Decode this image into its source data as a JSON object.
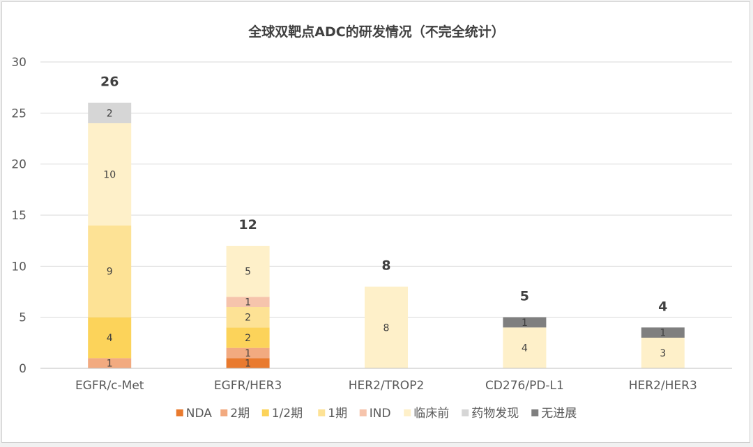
{
  "chart_data": {
    "type": "bar",
    "stacked": true,
    "title": "全球双靶点ADC的研发情况（不完全统计）",
    "categories": [
      "EGFR/c-Met",
      "EGFR/HER3",
      "HER2/TROP2",
      "CD276/PD-L1",
      "HER2/HER3"
    ],
    "series": [
      {
        "name": "NDA",
        "color": "#E97A2E",
        "values": [
          0,
          1,
          0,
          0,
          0
        ]
      },
      {
        "name": "2期",
        "color": "#F2AA80",
        "values": [
          1,
          1,
          0,
          0,
          0
        ]
      },
      {
        "name": "1/2期",
        "color": "#FCD35A",
        "values": [
          4,
          2,
          0,
          0,
          0
        ]
      },
      {
        "name": "1期",
        "color": "#FDE295",
        "values": [
          9,
          2,
          0,
          0,
          0
        ]
      },
      {
        "name": "IND",
        "color": "#F6C4AC",
        "values": [
          0,
          1,
          0,
          0,
          0
        ]
      },
      {
        "name": "临床前",
        "color": "#FEF0C9",
        "values": [
          10,
          5,
          8,
          4,
          3
        ]
      },
      {
        "name": "药物发现",
        "color": "#D6D6D6",
        "values": [
          2,
          0,
          0,
          0,
          0
        ]
      },
      {
        "name": "无进展",
        "color": "#7F7F7F",
        "values": [
          0,
          0,
          0,
          1,
          1
        ]
      }
    ],
    "totals": [
      26,
      12,
      8,
      5,
      4
    ],
    "ylim": [
      0,
      30
    ],
    "yticks": [
      0,
      5,
      10,
      15,
      20,
      25,
      30
    ],
    "grid": true,
    "legend": "bottom",
    "xlabel": "",
    "ylabel": ""
  }
}
